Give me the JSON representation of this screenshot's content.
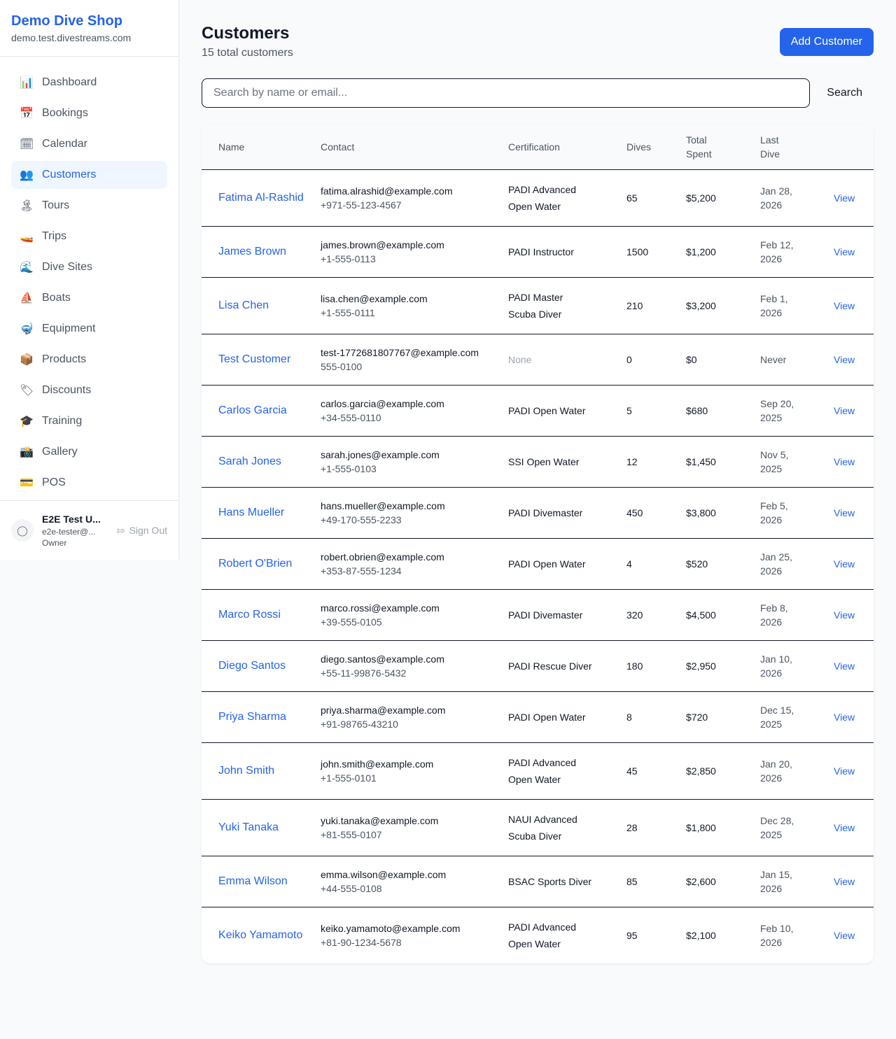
{
  "sidebar": {
    "shop_name": "Demo Dive Shop",
    "domain": "demo.test.divestreams.com",
    "items": [
      {
        "label": "Dashboard",
        "icon": "📊",
        "icon_name": "bar-chart-icon"
      },
      {
        "label": "Bookings",
        "icon": "📅",
        "icon_name": "calendar-date-icon"
      },
      {
        "label": "Calendar",
        "icon": "🗓",
        "icon_name": "calendar-icon"
      },
      {
        "label": "Customers",
        "icon": "👥",
        "icon_name": "users-icon",
        "active": true
      },
      {
        "label": "Tours",
        "icon": "🏝",
        "icon_name": "island-icon"
      },
      {
        "label": "Trips",
        "icon": "🚤",
        "icon_name": "boat-icon"
      },
      {
        "label": "Dive Sites",
        "icon": "🌊",
        "icon_name": "wave-icon"
      },
      {
        "label": "Boats",
        "icon": "⛵",
        "icon_name": "sailboat-icon"
      },
      {
        "label": "Equipment",
        "icon": "🤿",
        "icon_name": "mask-icon"
      },
      {
        "label": "Products",
        "icon": "📦",
        "icon_name": "package-icon"
      },
      {
        "label": "Discounts",
        "icon": "🏷",
        "icon_name": "tag-icon"
      },
      {
        "label": "Training",
        "icon": "🎓",
        "icon_name": "graduation-cap-icon"
      },
      {
        "label": "Gallery",
        "icon": "📸",
        "icon_name": "camera-icon"
      },
      {
        "label": "POS",
        "icon": "💳",
        "icon_name": "credit-card-icon"
      }
    ],
    "user": {
      "name": "E2E Test U...",
      "email": "e2e-tester@...",
      "role": "Owner",
      "sign_out": "Sign Out"
    }
  },
  "header": {
    "title": "Customers",
    "subtitle": "15 total customers",
    "add_button": "Add Customer"
  },
  "search": {
    "placeholder": "Search by name or email...",
    "value": "",
    "button": "Search"
  },
  "table": {
    "columns": [
      "Name",
      "Contact",
      "Certification",
      "Dives",
      "Total Spent",
      "Last Dive",
      ""
    ],
    "view_label": "View",
    "rows": [
      {
        "name": "Fatima Al-Rashid",
        "email": "fatima.alrashid@example.com",
        "phone": "+971-55-123-4567",
        "cert": "PADI Advanced Open Water",
        "dives": "65",
        "spent": "$5,200",
        "last": "Jan 28, 2026"
      },
      {
        "name": "James Brown",
        "email": "james.brown@example.com",
        "phone": "+1-555-0113",
        "cert": "PADI Instructor",
        "dives": "1500",
        "spent": "$1,200",
        "last": "Feb 12, 2026"
      },
      {
        "name": "Lisa Chen",
        "email": "lisa.chen@example.com",
        "phone": "+1-555-0111",
        "cert": "PADI Master Scuba Diver",
        "dives": "210",
        "spent": "$3,200",
        "last": "Feb 1, 2026"
      },
      {
        "name": "Test Customer",
        "email": "test-1772681807767@example.com",
        "phone": "555-0100",
        "cert": "None",
        "dives": "0",
        "spent": "$0",
        "last": "Never"
      },
      {
        "name": "Carlos Garcia",
        "email": "carlos.garcia@example.com",
        "phone": "+34-555-0110",
        "cert": "PADI Open Water",
        "dives": "5",
        "spent": "$680",
        "last": "Sep 20, 2025"
      },
      {
        "name": "Sarah Jones",
        "email": "sarah.jones@example.com",
        "phone": "+1-555-0103",
        "cert": "SSI Open Water",
        "dives": "12",
        "spent": "$1,450",
        "last": "Nov 5, 2025"
      },
      {
        "name": "Hans Mueller",
        "email": "hans.mueller@example.com",
        "phone": "+49-170-555-2233",
        "cert": "PADI Divemaster",
        "dives": "450",
        "spent": "$3,800",
        "last": "Feb 5, 2026"
      },
      {
        "name": "Robert O'Brien",
        "email": "robert.obrien@example.com",
        "phone": "+353-87-555-1234",
        "cert": "PADI Open Water",
        "dives": "4",
        "spent": "$520",
        "last": "Jan 25, 2026"
      },
      {
        "name": "Marco Rossi",
        "email": "marco.rossi@example.com",
        "phone": "+39-555-0105",
        "cert": "PADI Divemaster",
        "dives": "320",
        "spent": "$4,500",
        "last": "Feb 8, 2026"
      },
      {
        "name": "Diego Santos",
        "email": "diego.santos@example.com",
        "phone": "+55-11-99876-5432",
        "cert": "PADI Rescue Diver",
        "dives": "180",
        "spent": "$2,950",
        "last": "Jan 10, 2026"
      },
      {
        "name": "Priya Sharma",
        "email": "priya.sharma@example.com",
        "phone": "+91-98765-43210",
        "cert": "PADI Open Water",
        "dives": "8",
        "spent": "$720",
        "last": "Dec 15, 2025"
      },
      {
        "name": "John Smith",
        "email": "john.smith@example.com",
        "phone": "+1-555-0101",
        "cert": "PADI Advanced Open Water",
        "dives": "45",
        "spent": "$2,850",
        "last": "Jan 20, 2026"
      },
      {
        "name": "Yuki Tanaka",
        "email": "yuki.tanaka@example.com",
        "phone": "+81-555-0107",
        "cert": "NAUI Advanced Scuba Diver",
        "dives": "28",
        "spent": "$1,800",
        "last": "Dec 28, 2025"
      },
      {
        "name": "Emma Wilson",
        "email": "emma.wilson@example.com",
        "phone": "+44-555-0108",
        "cert": "BSAC Sports Diver",
        "dives": "85",
        "spent": "$2,600",
        "last": "Jan 15, 2026"
      },
      {
        "name": "Keiko Yamamoto",
        "email": "keiko.yamamoto@example.com",
        "phone": "+81-90-1234-5678",
        "cert": "PADI Advanced Open Water",
        "dives": "95",
        "spent": "$2,100",
        "last": "Feb 10, 2026"
      }
    ]
  }
}
